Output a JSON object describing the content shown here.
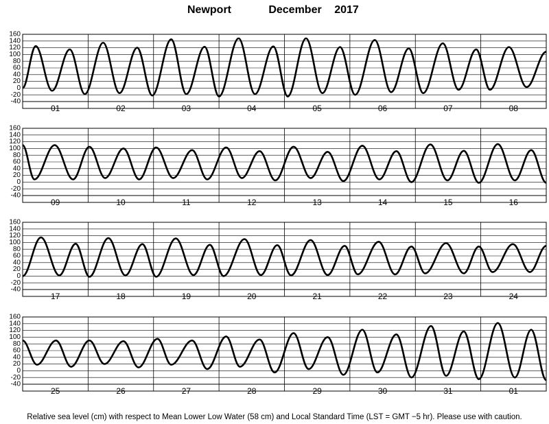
{
  "header": {
    "location": "Newport",
    "month": "December",
    "year": "2017"
  },
  "footnote": "Relative sea level (cm) with respect to Mean Lower Low Water (58 cm) and Local Standard Time (LST = GMT −5 hr). Please use with caution.",
  "chart_data": [
    {
      "type": "line",
      "days": [
        "01",
        "02",
        "03",
        "04",
        "05",
        "06",
        "07",
        "08"
      ],
      "color": "#000000",
      "x": [
        0,
        0.2,
        0.45,
        0.72,
        0.95,
        1.23,
        1.48,
        1.75,
        1.98,
        2.27,
        2.5,
        2.78,
        3.0,
        3.3,
        3.55,
        3.83,
        4.05,
        4.33,
        4.58,
        4.85,
        5.08,
        5.38,
        5.63,
        5.9,
        6.12,
        6.42,
        6.66,
        6.93,
        7.14,
        7.43,
        7.7,
        8.0
      ],
      "values": [
        0,
        125,
        -8,
        115,
        -18,
        135,
        -15,
        120,
        -22,
        145,
        -18,
        123,
        -25,
        148,
        -18,
        124,
        -25,
        148,
        -15,
        122,
        -20,
        143,
        -12,
        118,
        -15,
        133,
        -5,
        115,
        -5,
        122,
        3,
        108
      ],
      "xlim": [
        0,
        8
      ],
      "ylim": [
        -40,
        160
      ],
      "yticks": [
        -40,
        -20,
        0,
        20,
        40,
        60,
        80,
        100,
        120,
        140,
        160
      ],
      "grid": true
    },
    {
      "type": "line",
      "days": [
        "09",
        "10",
        "11",
        "12",
        "13",
        "14",
        "15",
        "16"
      ],
      "color": "#000000",
      "x": [
        0,
        0.18,
        0.49,
        0.77,
        1.02,
        1.26,
        1.54,
        1.78,
        2.04,
        2.3,
        2.59,
        2.82,
        3.11,
        3.35,
        3.62,
        3.86,
        4.14,
        4.4,
        4.66,
        4.9,
        5.19,
        5.45,
        5.71,
        5.94,
        6.23,
        6.49,
        6.74,
        6.97,
        7.26,
        7.52,
        7.77,
        8.0
      ],
      "values": [
        110,
        8,
        110,
        8,
        105,
        12,
        100,
        8,
        103,
        12,
        95,
        8,
        103,
        12,
        92,
        5,
        105,
        12,
        90,
        3,
        108,
        8,
        92,
        0,
        112,
        5,
        93,
        -2,
        113,
        5,
        95,
        -2
      ],
      "xlim": [
        0,
        8
      ],
      "ylim": [
        -40,
        160
      ],
      "yticks": [
        -40,
        -20,
        0,
        20,
        40,
        60,
        80,
        100,
        120,
        140,
        160
      ],
      "grid": true
    },
    {
      "type": "line",
      "days": [
        "17",
        "18",
        "19",
        "20",
        "21",
        "22",
        "23",
        "24"
      ],
      "color": "#000000",
      "x": [
        0,
        0.28,
        0.56,
        0.81,
        1.02,
        1.31,
        1.57,
        1.83,
        2.04,
        2.34,
        2.61,
        2.86,
        3.07,
        3.39,
        3.64,
        3.89,
        4.1,
        4.4,
        4.66,
        4.92,
        5.12,
        5.44,
        5.69,
        5.94,
        6.15,
        6.47,
        6.74,
        6.97,
        7.18,
        7.49,
        7.75,
        8.0
      ],
      "values": [
        0,
        115,
        2,
        96,
        -2,
        113,
        2,
        95,
        -2,
        112,
        3,
        93,
        0,
        110,
        3,
        92,
        2,
        107,
        3,
        90,
        5,
        102,
        5,
        88,
        8,
        98,
        8,
        88,
        12,
        95,
        12,
        90
      ],
      "xlim": [
        0,
        8
      ],
      "ylim": [
        -40,
        160
      ],
      "yticks": [
        -40,
        -20,
        0,
        20,
        40,
        60,
        80,
        100,
        120,
        140,
        160
      ],
      "grid": true
    },
    {
      "type": "line",
      "days": [
        "25",
        "26",
        "27",
        "28",
        "29",
        "30",
        "31",
        "01"
      ],
      "color": "#000000",
      "x": [
        0,
        0.22,
        0.51,
        0.74,
        1.02,
        1.25,
        1.54,
        1.77,
        2.06,
        2.27,
        2.59,
        2.82,
        3.11,
        3.32,
        3.62,
        3.85,
        4.14,
        4.37,
        4.66,
        4.9,
        5.19,
        5.42,
        5.71,
        5.94,
        6.24,
        6.47,
        6.74,
        6.97,
        7.26,
        7.52,
        7.77,
        8.0
      ],
      "values": [
        90,
        18,
        90,
        12,
        90,
        20,
        88,
        10,
        95,
        18,
        90,
        5,
        102,
        12,
        93,
        -5,
        112,
        5,
        100,
        -12,
        122,
        -5,
        108,
        -20,
        133,
        -15,
        117,
        -25,
        142,
        -20,
        122,
        -28
      ],
      "xlim": [
        0,
        8
      ],
      "ylim": [
        -40,
        160
      ],
      "yticks": [
        -40,
        -20,
        0,
        20,
        40,
        60,
        80,
        100,
        120,
        140,
        160
      ],
      "grid": true
    }
  ]
}
